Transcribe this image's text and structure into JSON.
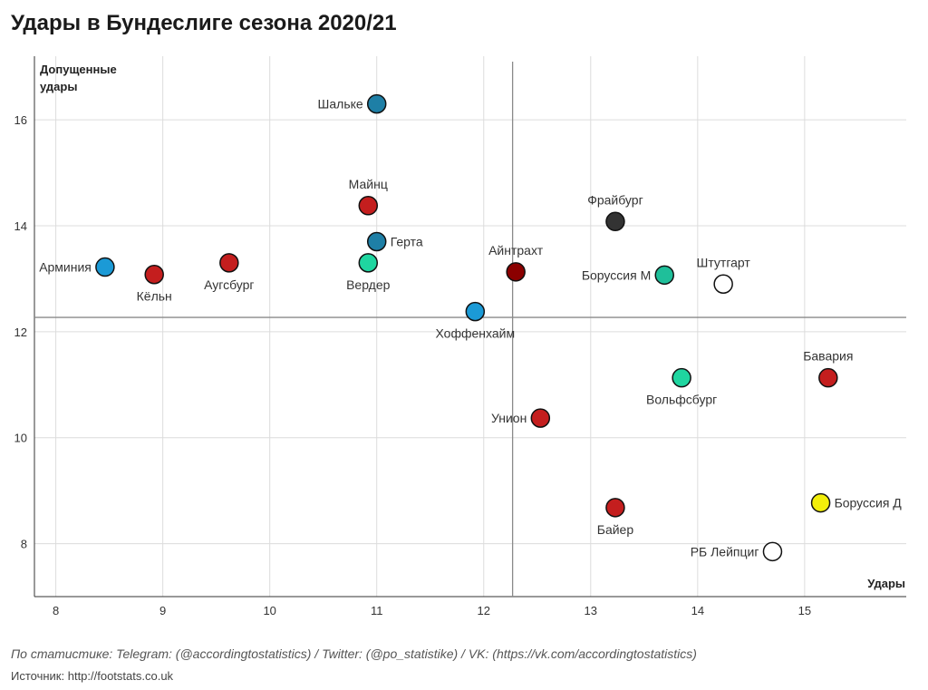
{
  "chart_data": {
    "type": "scatter",
    "title": "Удары в Бундеслиге сезона 2020/21",
    "xlabel": "Удары",
    "ylabel": "Допущенные удары",
    "ylabel_lines": [
      "Допущенные",
      "удары"
    ],
    "xlim": [
      7.8,
      15.95
    ],
    "ylim": [
      7.0,
      17.2
    ],
    "xticks": [
      "8",
      "9",
      "10",
      "11",
      "12",
      "13",
      "14",
      "15"
    ],
    "yticks": [
      "8",
      "10",
      "12",
      "14",
      "16"
    ],
    "grid": true,
    "reference_lines": {
      "x": 12.27,
      "y": 12.27
    },
    "points": [
      {
        "name": "Шальке",
        "x": 11.0,
        "y": 16.3,
        "color": "#1e7fa6",
        "label_pos": "left"
      },
      {
        "name": "Майнц",
        "x": 10.92,
        "y": 14.38,
        "color": "#c41e1e",
        "label_pos": "top"
      },
      {
        "name": "Герта",
        "x": 11.0,
        "y": 13.7,
        "color": "#1e7fa6",
        "label_pos": "right"
      },
      {
        "name": "Вердер",
        "x": 10.92,
        "y": 13.3,
        "color": "#1fd6a0",
        "label_pos": "bottom"
      },
      {
        "name": "Арминия",
        "x": 8.46,
        "y": 13.22,
        "color": "#1b9ad6",
        "label_pos": "left"
      },
      {
        "name": "Кёльн",
        "x": 8.92,
        "y": 13.08,
        "color": "#c41e1e",
        "label_pos": "bottom"
      },
      {
        "name": "Аугсбург",
        "x": 9.62,
        "y": 13.3,
        "color": "#c41e1e",
        "label_pos": "bottom"
      },
      {
        "name": "Хоффенхайм",
        "x": 11.92,
        "y": 12.38,
        "color": "#1b9ad6",
        "label_pos": "bottom"
      },
      {
        "name": "Айнтрахт",
        "x": 12.3,
        "y": 13.13,
        "color": "#8b0000",
        "label_pos": "top"
      },
      {
        "name": "Фрайбург",
        "x": 13.23,
        "y": 14.08,
        "color": "#333333",
        "label_pos": "top"
      },
      {
        "name": "Боруссия М",
        "x": 13.69,
        "y": 13.07,
        "color": "#1fbf9a",
        "label_pos": "left"
      },
      {
        "name": "Штутгарт",
        "x": 14.24,
        "y": 12.9,
        "color": "#ffffff",
        "label_pos": "top"
      },
      {
        "name": "Бавария",
        "x": 15.22,
        "y": 11.13,
        "color": "#c41e1e",
        "label_pos": "top"
      },
      {
        "name": "Вольфсбург",
        "x": 13.85,
        "y": 11.13,
        "color": "#1fd6a0",
        "label_pos": "bottom"
      },
      {
        "name": "Унион",
        "x": 12.53,
        "y": 10.37,
        "color": "#c41e1e",
        "label_pos": "left"
      },
      {
        "name": "Байер",
        "x": 13.23,
        "y": 8.68,
        "color": "#c41e1e",
        "label_pos": "bottom"
      },
      {
        "name": "Боруссия Д",
        "x": 15.15,
        "y": 8.77,
        "color": "#f2ee0a",
        "label_pos": "right"
      },
      {
        "name": "РБ Лейпциг",
        "x": 14.7,
        "y": 7.85,
        "color": "#ffffff",
        "label_pos": "left"
      }
    ]
  },
  "footer": {
    "credit": "По статистике: Telegram: (@accordingtostatistics) / Twitter: (@po_statistike) / VK: (https://vk.com/accordingtostatistics)",
    "source": "Источник: http://footstats.co.uk"
  }
}
